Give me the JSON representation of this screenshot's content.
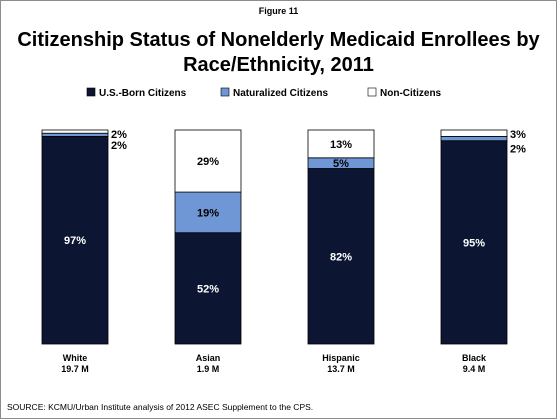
{
  "figure_label": "Figure 11",
  "source": "SOURCE: KCMU/Urban Institute analysis of 2012 ASEC Supplement to the CPS.",
  "colors": {
    "us_born": "#0c1633",
    "naturalized": "#6f97d6",
    "non_citizens": "#ffffff",
    "bar_outline": "#000000"
  },
  "chart_data": {
    "type": "bar",
    "stacked": true,
    "title": "Citizenship Status of Nonelderly Medicaid Enrollees by Race/Ethnicity, 2011",
    "title_lines": [
      "Citizenship Status of Nonelderly Medicaid Enrollees by",
      "Race/Ethnicity, 2011"
    ],
    "legend_position": "top",
    "ylim": [
      0,
      100
    ],
    "categories": [
      "White",
      "Asian",
      "Hispanic",
      "Black"
    ],
    "sublabels": [
      "19.7 M",
      "1.9 M",
      "13.7 M",
      "9.4 M"
    ],
    "series": [
      {
        "name": "U.S.-Born Citizens",
        "values": [
          97,
          52,
          82,
          95
        ],
        "labels": [
          "97%",
          "52%",
          "82%",
          "95%"
        ]
      },
      {
        "name": "Naturalized Citizens",
        "values": [
          1.5,
          19,
          5,
          2
        ],
        "labels": [
          "2%",
          "19%",
          "5%",
          "2%"
        ]
      },
      {
        "name": "Non-Citizens",
        "values": [
          1.5,
          29,
          13,
          3
        ],
        "labels": [
          "2%",
          "29%",
          "13%",
          "3%"
        ]
      }
    ]
  }
}
